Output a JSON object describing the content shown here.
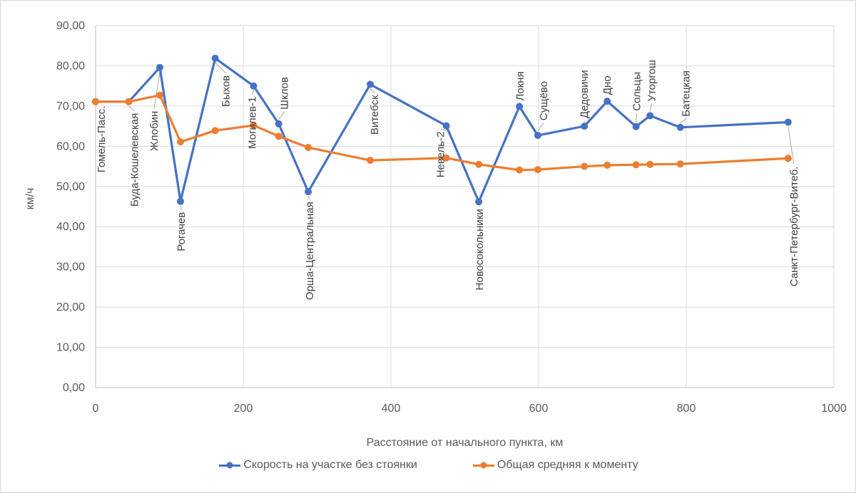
{
  "chart_data": {
    "type": "line",
    "title": "",
    "xlabel": "Расстояние от начального пункта, км",
    "ylabel": "км/ч",
    "xlim": [
      0,
      1000
    ],
    "ylim": [
      0,
      90
    ],
    "grid": true,
    "legend_position": "bottom",
    "x_tick_values": [
      0,
      200,
      400,
      600,
      800,
      1000
    ],
    "x_tick_labels": [
      "0",
      "200",
      "400",
      "600",
      "800",
      "1000"
    ],
    "y_tick_values": [
      0,
      10,
      20,
      30,
      40,
      50,
      60,
      70,
      80,
      90
    ],
    "y_tick_labels": [
      "0,00",
      "10,00",
      "20,00",
      "30,00",
      "40,00",
      "50,00",
      "60,00",
      "70,00",
      "80,00",
      "90,00"
    ],
    "series": [
      {
        "name": "Скорость на участке без стоянки",
        "color": "#4472C4",
        "value_key": "segment_speed"
      },
      {
        "name": "Общая средняя к моменту",
        "color": "#ED7D31",
        "value_key": "avg_speed"
      }
    ],
    "points": [
      {
        "station": "Гомель-Пасс.",
        "km": 0,
        "segment_speed": 71.1,
        "avg_speed": 71.1,
        "label_side": "below",
        "label_gap": 6,
        "label_dx": 8
      },
      {
        "station": "Буда-Кошелевская",
        "km": 45,
        "segment_speed": 71.1,
        "avg_speed": 71.1,
        "label_side": "below",
        "label_gap": 16,
        "label_dx": 8
      },
      {
        "station": "Жлобин",
        "km": 87,
        "segment_speed": 79.6,
        "avg_speed": 72.7,
        "label_side": "below",
        "label_gap": 61,
        "label_dx": -8
      },
      {
        "station": "Рогачев",
        "km": 115,
        "segment_speed": 46.3,
        "avg_speed": 61.1,
        "label_side": "below",
        "label_gap": 15,
        "label_dx": 1
      },
      {
        "station": "Быхов",
        "km": 162,
        "segment_speed": 81.9,
        "avg_speed": 63.9,
        "label_side": "below",
        "label_gap": 24,
        "label_dx": 15
      },
      {
        "station": "Могилев-1",
        "km": 214,
        "segment_speed": 75.0,
        "avg_speed": 65.2,
        "label_side": "below",
        "label_gap": 15,
        "label_dx": -2
      },
      {
        "station": "Шклов",
        "km": 248,
        "segment_speed": 65.6,
        "avg_speed": 62.5,
        "label_side": "above",
        "label_gap": 20,
        "label_dx": 8
      },
      {
        "station": "Орша-Центральная",
        "km": 288,
        "segment_speed": 48.7,
        "avg_speed": 59.7,
        "label_side": "below",
        "label_gap": 14,
        "label_dx": 2
      },
      {
        "station": "Витебск",
        "km": 372,
        "segment_speed": 75.4,
        "avg_speed": 56.5,
        "label_side": "below",
        "label_gap": 15,
        "label_dx": 6
      },
      {
        "station": "Невель-2",
        "km": 475,
        "segment_speed": 65.1,
        "avg_speed": 57.1,
        "label_side": "below",
        "label_gap": 8,
        "label_dx": -8
      },
      {
        "station": "Новосокольники",
        "km": 519,
        "segment_speed": 46.2,
        "avg_speed": 55.5,
        "label_side": "below",
        "label_gap": 10,
        "label_dx": 1
      },
      {
        "station": "Локня",
        "km": 574,
        "segment_speed": 69.9,
        "avg_speed": 54.1,
        "label_side": "above",
        "label_gap": 8,
        "label_dx": 1
      },
      {
        "station": "Сущёво",
        "km": 599,
        "segment_speed": 62.7,
        "avg_speed": 54.2,
        "label_side": "above",
        "label_gap": 21,
        "label_dx": 8
      },
      {
        "station": "Дедовичи",
        "km": 662,
        "segment_speed": 65.0,
        "avg_speed": 55.0,
        "label_side": "above",
        "label_gap": 11,
        "label_dx": 0
      },
      {
        "station": "Дно",
        "km": 693,
        "segment_speed": 71.2,
        "avg_speed": 55.3,
        "label_side": "above",
        "label_gap": 9,
        "label_dx": 0
      },
      {
        "station": "Сольцы",
        "km": 732,
        "segment_speed": 64.9,
        "avg_speed": 55.4,
        "label_side": "above",
        "label_gap": 22,
        "label_dx": 1
      },
      {
        "station": "Уторгош",
        "km": 751,
        "segment_speed": 67.6,
        "avg_speed": 55.5,
        "label_side": "above",
        "label_gap": 20,
        "label_dx": 2
      },
      {
        "station": "Батецкая",
        "km": 792,
        "segment_speed": 64.7,
        "avg_speed": 55.6,
        "label_side": "above",
        "label_gap": 15,
        "label_dx": 8
      },
      {
        "station": "Санкт-Петербург-Витеб.",
        "km": 938,
        "segment_speed": 66.0,
        "avg_speed": 57.0,
        "label_side": "below",
        "label_gap": 62,
        "label_dx": 8
      }
    ]
  },
  "colors": {
    "grid": "#D9D9D9",
    "axis": "#BFBFBF",
    "tick_text": "#595959",
    "station_text": "#404040",
    "leader": "#A6A6A6",
    "frame_border": "#D9D9D9",
    "background": "#FFFFFF",
    "series_blue": "#4472C4",
    "series_orange": "#ED7D31"
  }
}
